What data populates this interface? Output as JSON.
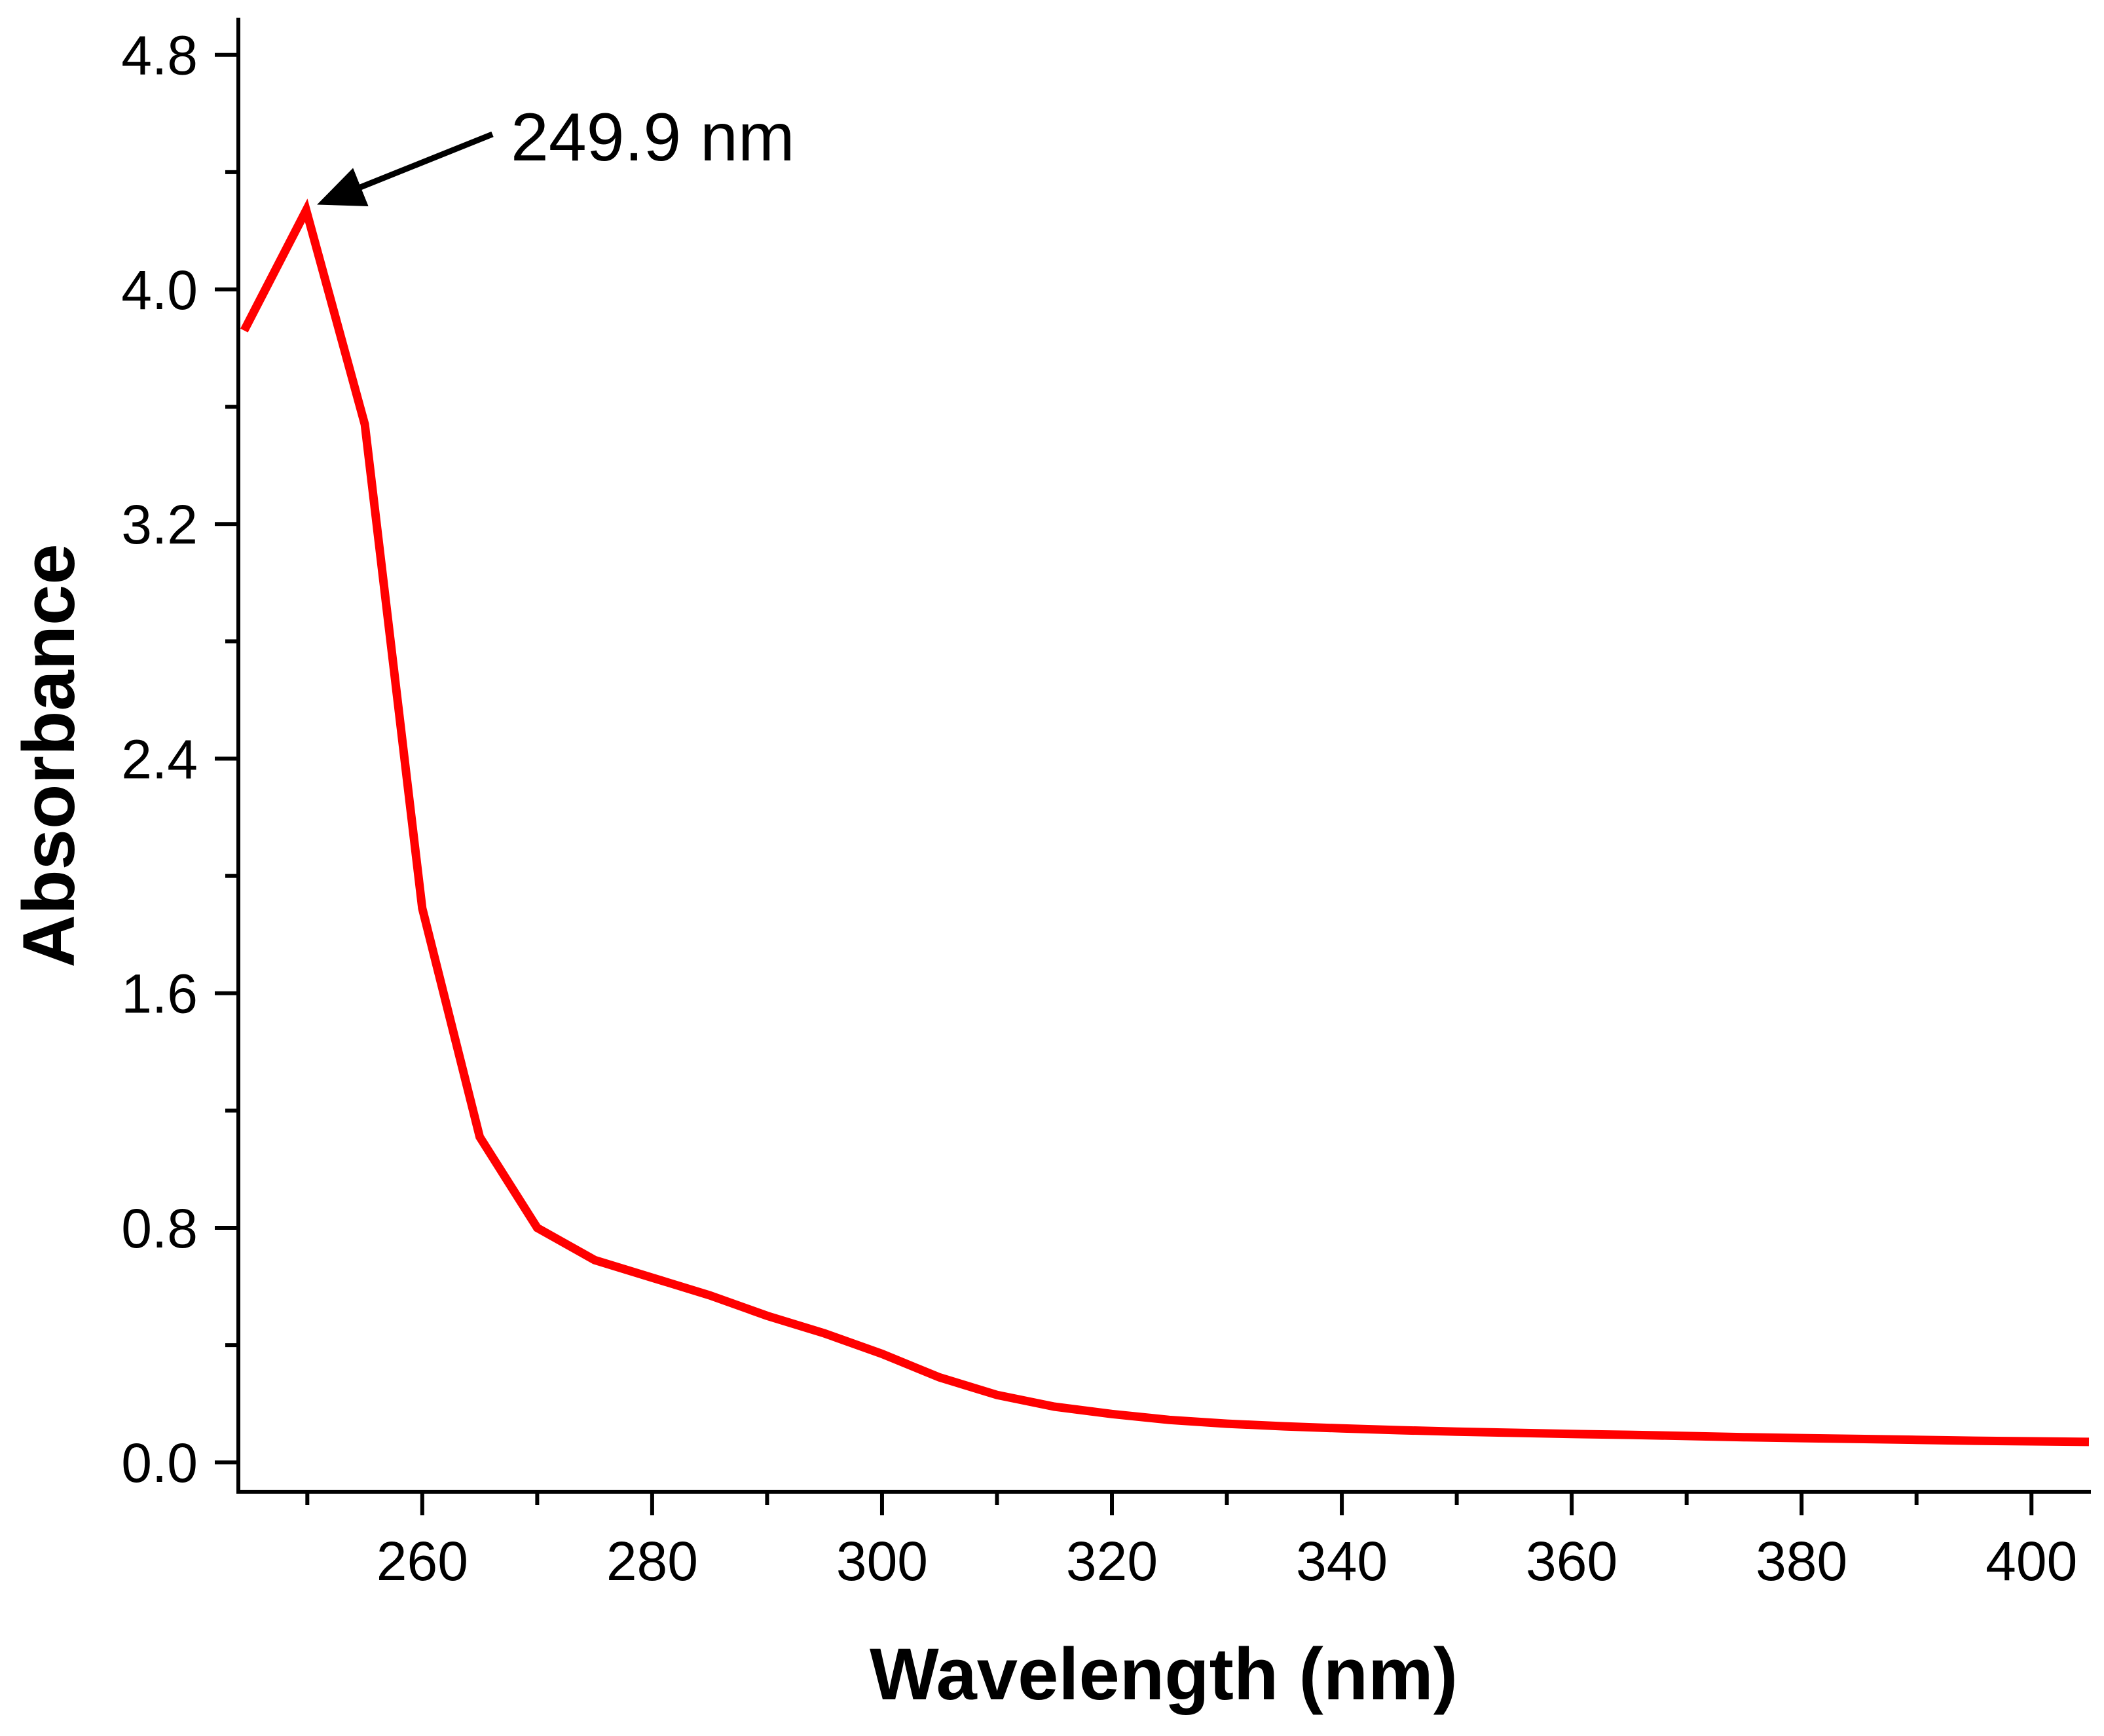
{
  "chart_data": {
    "type": "line",
    "title": "",
    "xlabel": "Wavelength (nm)",
    "ylabel": "Absorbance",
    "xlim": [
      244,
      405
    ],
    "ylim": [
      -0.1,
      4.92
    ],
    "x_ticks": [
      260,
      280,
      300,
      320,
      340,
      360,
      380,
      400
    ],
    "x_tick_labels": [
      "260",
      "280",
      "300",
      "320",
      "340",
      "360",
      "380",
      "400"
    ],
    "x_minor_ticks": [
      250,
      270,
      290,
      310,
      330,
      350,
      370,
      390
    ],
    "y_ticks": [
      0.0,
      0.8,
      1.6,
      2.4,
      3.2,
      4.0,
      4.8
    ],
    "y_tick_labels": [
      "0.0",
      "0.8",
      "1.6",
      "2.4",
      "3.2",
      "4.0",
      "4.8"
    ],
    "y_minor_ticks": [
      0.4,
      1.2,
      2.0,
      2.8,
      3.6,
      4.4
    ],
    "grid": false,
    "series": [
      {
        "name": "Absorbance",
        "color": "#ff0000",
        "x": [
          244.5,
          249.9,
          255,
          260,
          265,
          270,
          275,
          280,
          285,
          290,
          295,
          300,
          305,
          310,
          315,
          320,
          325,
          330,
          335,
          340,
          345,
          350,
          355,
          360,
          365,
          370,
          375,
          380,
          385,
          390,
          395,
          400,
          405
        ],
        "values": [
          3.86,
          4.27,
          3.54,
          1.89,
          1.11,
          0.8,
          0.69,
          0.63,
          0.57,
          0.5,
          0.44,
          0.37,
          0.29,
          0.23,
          0.19,
          0.165,
          0.145,
          0.132,
          0.123,
          0.116,
          0.11,
          0.105,
          0.101,
          0.097,
          0.094,
          0.09,
          0.086,
          0.083,
          0.08,
          0.077,
          0.074,
          0.072,
          0.07
        ]
      }
    ],
    "annotations": [
      {
        "text": "249.9 nm",
        "target": {
          "x": 249.9,
          "y": 4.27
        }
      }
    ]
  }
}
